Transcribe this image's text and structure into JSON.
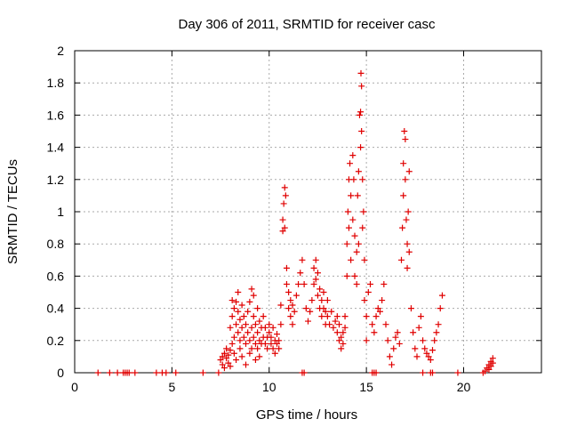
{
  "chart_data": {
    "type": "scatter",
    "title": "Day 306 of 2011, SRMTID for receiver casc",
    "xlabel": "GPS time / hours",
    "ylabel": "SRMTID / TECUs",
    "xlim": [
      0,
      24
    ],
    "ylim": [
      0,
      2
    ],
    "x_ticks": [
      0,
      5,
      10,
      15,
      20
    ],
    "y_ticks": [
      0,
      0.2,
      0.4,
      0.6,
      0.8,
      1,
      1.2,
      1.4,
      1.6,
      1.8,
      2
    ],
    "x_tick_labels": [
      "0",
      "5",
      "10",
      "15",
      "20"
    ],
    "y_tick_labels": [
      "0",
      "0.2",
      "0.4",
      "0.6",
      "0.8",
      "1",
      "1.2",
      "1.4",
      "1.6",
      "1.8",
      "2"
    ],
    "grid": true,
    "marker": "plus",
    "color": "#e00000",
    "points": [
      [
        1.2,
        0
      ],
      [
        1.8,
        0
      ],
      [
        2.2,
        0
      ],
      [
        2.5,
        0
      ],
      [
        2.6,
        0
      ],
      [
        2.7,
        0
      ],
      [
        2.8,
        0
      ],
      [
        3.1,
        0
      ],
      [
        4.2,
        0
      ],
      [
        4.5,
        0
      ],
      [
        4.7,
        0
      ],
      [
        5.2,
        0
      ],
      [
        6.6,
        0
      ],
      [
        7.4,
        0
      ],
      [
        11.7,
        0
      ],
      [
        11.8,
        0
      ],
      [
        15.3,
        0
      ],
      [
        15.4,
        0
      ],
      [
        15.5,
        0
      ],
      [
        17.9,
        0
      ],
      [
        18.3,
        0
      ],
      [
        18.4,
        0
      ],
      [
        19.7,
        0
      ],
      [
        21.0,
        0
      ],
      [
        7.5,
        0.08
      ],
      [
        7.6,
        0.1
      ],
      [
        7.6,
        0.05
      ],
      [
        7.7,
        0.12
      ],
      [
        7.7,
        0.03
      ],
      [
        7.8,
        0.09
      ],
      [
        7.8,
        0.15
      ],
      [
        7.9,
        0.06
      ],
      [
        7.9,
        0.11
      ],
      [
        8.0,
        0.04
      ],
      [
        8.0,
        0.14
      ],
      [
        8.0,
        0.28
      ],
      [
        8.1,
        0.18
      ],
      [
        8.1,
        0.35
      ],
      [
        8.1,
        0.45
      ],
      [
        8.2,
        0.22
      ],
      [
        8.2,
        0.4
      ],
      [
        8.2,
        0.12
      ],
      [
        8.3,
        0.3
      ],
      [
        8.3,
        0.44
      ],
      [
        8.3,
        0.08
      ],
      [
        8.4,
        0.25
      ],
      [
        8.4,
        0.38
      ],
      [
        8.4,
        0.5
      ],
      [
        8.5,
        0.2
      ],
      [
        8.5,
        0.33
      ],
      [
        8.5,
        0.15
      ],
      [
        8.6,
        0.28
      ],
      [
        8.6,
        0.42
      ],
      [
        8.6,
        0.1
      ],
      [
        8.7,
        0.22
      ],
      [
        8.7,
        0.35
      ],
      [
        8.8,
        0.18
      ],
      [
        8.8,
        0.3
      ],
      [
        8.8,
        0.05
      ],
      [
        8.9,
        0.25
      ],
      [
        8.9,
        0.38
      ],
      [
        9.0,
        0.2
      ],
      [
        9.0,
        0.44
      ],
      [
        9.0,
        0.12
      ],
      [
        9.1,
        0.28
      ],
      [
        9.1,
        0.52
      ],
      [
        9.1,
        0.15
      ],
      [
        9.2,
        0.22
      ],
      [
        9.2,
        0.35
      ],
      [
        9.2,
        0.48
      ],
      [
        9.3,
        0.18
      ],
      [
        9.3,
        0.3
      ],
      [
        9.3,
        0.08
      ],
      [
        9.4,
        0.25
      ],
      [
        9.4,
        0.4
      ],
      [
        9.4,
        0.15
      ],
      [
        9.5,
        0.2
      ],
      [
        9.5,
        0.32
      ],
      [
        9.5,
        0.1
      ],
      [
        9.6,
        0.28
      ],
      [
        9.6,
        0.18
      ],
      [
        9.7,
        0.22
      ],
      [
        9.7,
        0.35
      ],
      [
        9.8,
        0.18
      ],
      [
        9.8,
        0.28
      ],
      [
        9.9,
        0.22
      ],
      [
        9.9,
        0.15
      ],
      [
        10.0,
        0.25
      ],
      [
        10.0,
        0.3
      ],
      [
        10.1,
        0.18
      ],
      [
        10.1,
        0.22
      ],
      [
        10.2,
        0.15
      ],
      [
        10.2,
        0.28
      ],
      [
        10.3,
        0.2
      ],
      [
        10.3,
        0.12
      ],
      [
        10.4,
        0.18
      ],
      [
        10.4,
        0.24
      ],
      [
        10.5,
        0.15
      ],
      [
        10.5,
        0.2
      ],
      [
        10.6,
        0.3
      ],
      [
        10.6,
        0.42
      ],
      [
        10.7,
        0.88
      ],
      [
        10.7,
        0.95
      ],
      [
        10.75,
        1.05
      ],
      [
        10.8,
        1.15
      ],
      [
        10.8,
        0.9
      ],
      [
        10.85,
        1.1
      ],
      [
        10.9,
        0.55
      ],
      [
        10.9,
        0.65
      ],
      [
        11.0,
        0.4
      ],
      [
        11.0,
        0.5
      ],
      [
        11.1,
        0.35
      ],
      [
        11.1,
        0.45
      ],
      [
        11.2,
        0.3
      ],
      [
        11.2,
        0.42
      ],
      [
        11.3,
        0.38
      ],
      [
        11.4,
        0.48
      ],
      [
        11.5,
        0.55
      ],
      [
        11.6,
        0.62
      ],
      [
        11.7,
        0.7
      ],
      [
        11.8,
        0.55
      ],
      [
        11.9,
        0.4
      ],
      [
        12.0,
        0.32
      ],
      [
        12.1,
        0.38
      ],
      [
        12.2,
        0.45
      ],
      [
        12.3,
        0.55
      ],
      [
        12.3,
        0.65
      ],
      [
        12.4,
        0.7
      ],
      [
        12.4,
        0.58
      ],
      [
        12.5,
        0.62
      ],
      [
        12.5,
        0.48
      ],
      [
        12.6,
        0.52
      ],
      [
        12.6,
        0.4
      ],
      [
        12.7,
        0.45
      ],
      [
        12.7,
        0.35
      ],
      [
        12.8,
        0.4
      ],
      [
        12.8,
        0.5
      ],
      [
        12.9,
        0.38
      ],
      [
        12.9,
        0.3
      ],
      [
        13.0,
        0.35
      ],
      [
        13.0,
        0.45
      ],
      [
        13.1,
        0.3
      ],
      [
        13.2,
        0.38
      ],
      [
        13.3,
        0.28
      ],
      [
        13.4,
        0.32
      ],
      [
        13.5,
        0.25
      ],
      [
        13.5,
        0.35
      ],
      [
        13.6,
        0.2
      ],
      [
        13.6,
        0.3
      ],
      [
        13.7,
        0.22
      ],
      [
        13.7,
        0.15
      ],
      [
        13.8,
        0.25
      ],
      [
        13.8,
        0.18
      ],
      [
        13.9,
        0.35
      ],
      [
        13.9,
        0.28
      ],
      [
        14.0,
        0.6
      ],
      [
        14.0,
        0.8
      ],
      [
        14.05,
        1.0
      ],
      [
        14.1,
        1.2
      ],
      [
        14.1,
        0.9
      ],
      [
        14.15,
        1.3
      ],
      [
        14.2,
        1.1
      ],
      [
        14.2,
        0.7
      ],
      [
        14.3,
        1.35
      ],
      [
        14.3,
        0.95
      ],
      [
        14.35,
        1.2
      ],
      [
        14.4,
        0.85
      ],
      [
        14.4,
        0.6
      ],
      [
        14.5,
        0.75
      ],
      [
        14.5,
        0.55
      ],
      [
        14.55,
        1.1
      ],
      [
        14.6,
        1.25
      ],
      [
        14.6,
        0.8
      ],
      [
        14.65,
        1.6
      ],
      [
        14.7,
        1.62
      ],
      [
        14.7,
        1.4
      ],
      [
        14.72,
        1.86
      ],
      [
        14.75,
        1.78
      ],
      [
        14.75,
        1.5
      ],
      [
        14.8,
        1.2
      ],
      [
        14.8,
        0.9
      ],
      [
        14.85,
        1.0
      ],
      [
        14.9,
        0.7
      ],
      [
        14.9,
        0.45
      ],
      [
        15.0,
        0.35
      ],
      [
        15.0,
        0.2
      ],
      [
        15.1,
        0.5
      ],
      [
        15.2,
        0.55
      ],
      [
        15.3,
        0.3
      ],
      [
        15.4,
        0.25
      ],
      [
        15.5,
        0.35
      ],
      [
        15.6,
        0.4
      ],
      [
        15.7,
        0.38
      ],
      [
        15.8,
        0.45
      ],
      [
        15.9,
        0.55
      ],
      [
        16.0,
        0.3
      ],
      [
        16.1,
        0.2
      ],
      [
        16.2,
        0.1
      ],
      [
        16.3,
        0.05
      ],
      [
        16.4,
        0.15
      ],
      [
        16.5,
        0.22
      ],
      [
        16.6,
        0.25
      ],
      [
        16.7,
        0.18
      ],
      [
        16.8,
        0.7
      ],
      [
        16.85,
        0.9
      ],
      [
        16.9,
        1.1
      ],
      [
        16.9,
        1.3
      ],
      [
        16.95,
        1.5
      ],
      [
        17.0,
        1.45
      ],
      [
        17.0,
        1.2
      ],
      [
        17.05,
        0.95
      ],
      [
        17.1,
        0.8
      ],
      [
        17.1,
        0.65
      ],
      [
        17.15,
        1.0
      ],
      [
        17.2,
        1.25
      ],
      [
        17.2,
        0.75
      ],
      [
        17.3,
        0.4
      ],
      [
        17.4,
        0.25
      ],
      [
        17.5,
        0.15
      ],
      [
        17.6,
        0.1
      ],
      [
        17.7,
        0.28
      ],
      [
        17.8,
        0.35
      ],
      [
        17.9,
        0.2
      ],
      [
        18.0,
        0.15
      ],
      [
        18.1,
        0.12
      ],
      [
        18.2,
        0.1
      ],
      [
        18.3,
        0.08
      ],
      [
        18.4,
        0.14
      ],
      [
        18.5,
        0.2
      ],
      [
        18.6,
        0.25
      ],
      [
        18.7,
        0.3
      ],
      [
        18.8,
        0.4
      ],
      [
        18.9,
        0.48
      ],
      [
        21.1,
        0.01
      ],
      [
        21.2,
        0.03
      ],
      [
        21.3,
        0.02
      ],
      [
        21.3,
        0.05
      ],
      [
        21.4,
        0.04
      ],
      [
        21.4,
        0.07
      ],
      [
        21.5,
        0.06
      ],
      [
        21.5,
        0.09
      ]
    ]
  }
}
